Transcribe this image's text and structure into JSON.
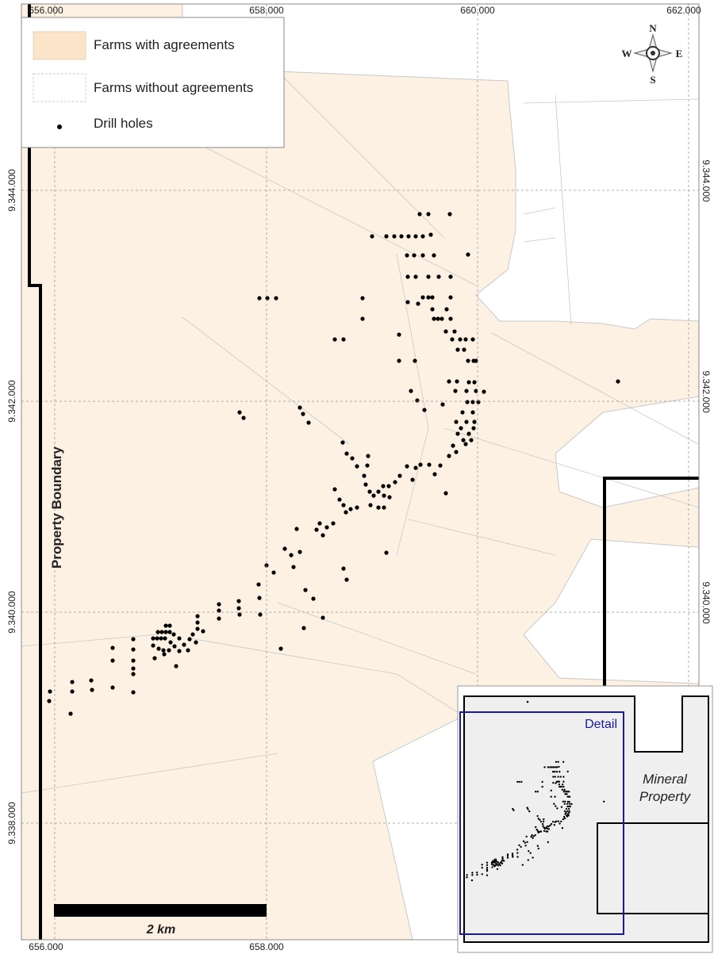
{
  "map": {
    "x_axis_top": [
      "656.000",
      "658.000",
      "660.000",
      "662.000"
    ],
    "x_axis_bottom": [
      "656.000",
      "658.000"
    ],
    "y_axis_left": [
      "9.344.000",
      "9.342.000",
      "9.340.000",
      "9.338.000"
    ],
    "y_axis_right": [
      "9.344.000",
      "9.342.000",
      "9.340.000"
    ],
    "legend": [
      "Farms with agreements",
      "Farms without agreements",
      "Drill holes"
    ],
    "boundary_label": "Property Boundary",
    "scale_bar": "2 km",
    "compass": {
      "n": "N",
      "e": "E",
      "s": "S",
      "w": "W"
    },
    "inset": {
      "detail": "Detail",
      "property_lines": [
        "Mineral",
        "Property"
      ]
    }
  }
}
